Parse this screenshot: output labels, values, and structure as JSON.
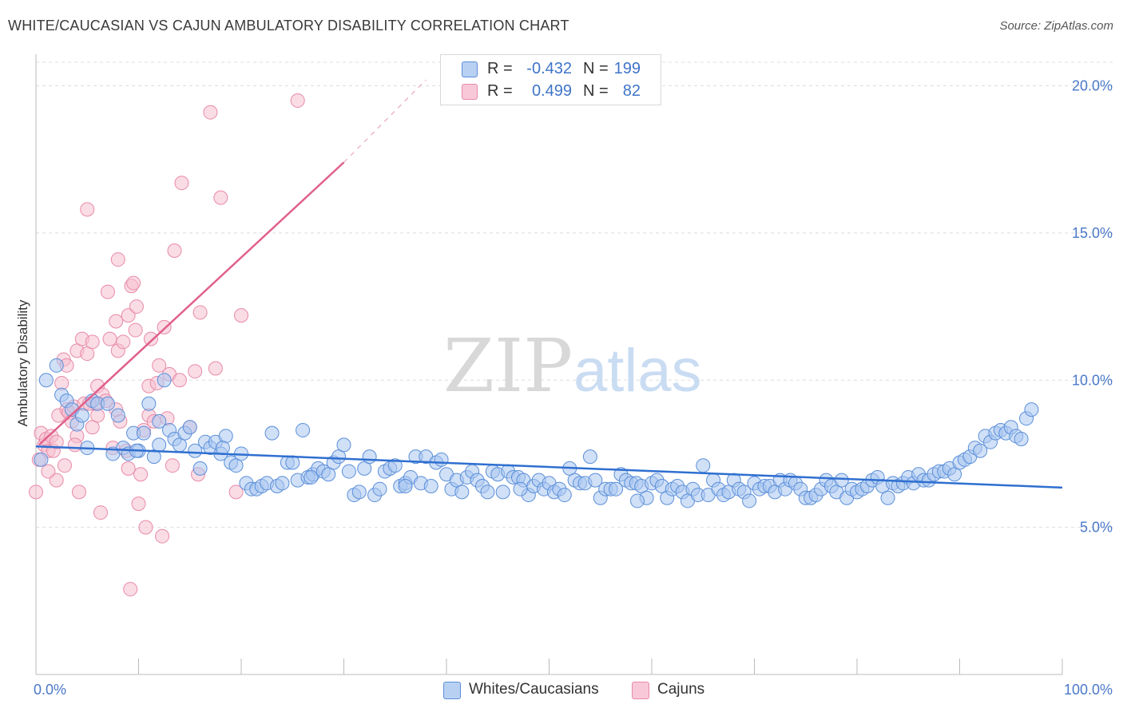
{
  "title": "WHITE/CAUCASIAN VS CAJUN AMBULATORY DISABILITY CORRELATION CHART",
  "source": "Source: ZipAtlas.com",
  "watermark": {
    "zip": "ZIP",
    "atlas": "atlas"
  },
  "legend": {
    "rows": [
      {
        "r_label": "R =",
        "r_value": "-0.432",
        "n_label": "N =",
        "n_value": "199"
      },
      {
        "r_label": "R =",
        "r_value": "0.499",
        "n_label": "N =",
        "n_value": "82"
      }
    ]
  },
  "bottom_legend": [
    "Whites/Caucasians",
    "Cajuns"
  ],
  "colors": {
    "blue_fill": "#a9c7f0",
    "blue_stroke": "#5b8fd9",
    "blue_line": "#2f6fd0",
    "pink_fill": "#f6bfd0",
    "pink_stroke": "#e88aa8",
    "pink_line": "#e0608c",
    "grid": "#dddddd",
    "axis_text": "#4a78c8"
  },
  "chart_data": {
    "type": "scatter",
    "title": "WHITE/CAUCASIAN VS CAJUN AMBULATORY DISABILITY CORRELATION CHART",
    "xlabel": "",
    "ylabel": "Ambulatory Disability",
    "xlim": [
      0,
      100
    ],
    "ylim": [
      0,
      20.8
    ],
    "x_tick_labels": [
      "0.0%",
      "100.0%"
    ],
    "y_ticks": [
      5,
      10,
      15,
      20
    ],
    "y_tick_labels": [
      "5.0%",
      "10.0%",
      "15.0%",
      "20.0%"
    ],
    "series": [
      {
        "name": "Whites/Caucasians",
        "R": -0.432,
        "N": 199,
        "trend": {
          "x0": 0,
          "y0": 7.75,
          "x1": 100,
          "y1": 6.35
        },
        "points": [
          [
            0.5,
            7.3
          ],
          [
            1,
            10
          ],
          [
            2,
            10.5
          ],
          [
            2.5,
            9.5
          ],
          [
            3,
            9.3
          ],
          [
            3.5,
            9
          ],
          [
            4,
            8.5
          ],
          [
            4.5,
            8.8
          ],
          [
            5,
            7.7
          ],
          [
            5.5,
            9.3
          ],
          [
            6,
            9.2
          ],
          [
            7,
            9.2
          ],
          [
            7.5,
            7.5
          ],
          [
            8,
            8.8
          ],
          [
            8.5,
            7.7
          ],
          [
            9,
            7.5
          ],
          [
            9.5,
            8.2
          ],
          [
            10,
            7.6
          ],
          [
            10.5,
            8.2
          ],
          [
            11,
            9.2
          ],
          [
            11.5,
            7.4
          ],
          [
            12,
            7.8
          ],
          [
            12.5,
            10
          ],
          [
            13,
            8.3
          ],
          [
            13.5,
            8
          ],
          [
            14,
            7.8
          ],
          [
            14.5,
            8.2
          ],
          [
            15,
            8.4
          ],
          [
            15.5,
            7.6
          ],
          [
            16,
            7
          ],
          [
            16.5,
            7.9
          ],
          [
            17,
            7.7
          ],
          [
            17.5,
            7.9
          ],
          [
            18,
            7.5
          ],
          [
            18.5,
            8.1
          ],
          [
            19,
            7.2
          ],
          [
            19.5,
            7.1
          ],
          [
            20,
            7.5
          ],
          [
            20.5,
            6.5
          ],
          [
            21,
            6.3
          ],
          [
            21.5,
            6.3
          ],
          [
            22,
            6.4
          ],
          [
            22.5,
            6.5
          ],
          [
            23,
            8.2
          ],
          [
            23.5,
            6.4
          ],
          [
            24,
            6.5
          ],
          [
            24.5,
            7.2
          ],
          [
            25,
            7.2
          ],
          [
            25.5,
            6.6
          ],
          [
            26,
            8.3
          ],
          [
            26.5,
            6.7
          ],
          [
            27,
            6.8
          ],
          [
            27.5,
            7
          ],
          [
            28,
            6.9
          ],
          [
            28.5,
            6.8
          ],
          [
            29,
            7.2
          ],
          [
            29.5,
            7.4
          ],
          [
            30,
            7.8
          ],
          [
            30.5,
            6.9
          ],
          [
            31,
            6.1
          ],
          [
            31.5,
            6.2
          ],
          [
            32,
            7
          ],
          [
            32.5,
            7.4
          ],
          [
            33,
            6.1
          ],
          [
            33.5,
            6.3
          ],
          [
            34,
            6.9
          ],
          [
            34.5,
            7
          ],
          [
            35,
            7.1
          ],
          [
            35.5,
            6.4
          ],
          [
            36,
            6.5
          ],
          [
            36.5,
            6.7
          ],
          [
            37,
            7.4
          ],
          [
            37.5,
            6.5
          ],
          [
            38,
            7.4
          ],
          [
            38.5,
            6.4
          ],
          [
            39,
            7.2
          ],
          [
            39.5,
            7.3
          ],
          [
            40,
            6.8
          ],
          [
            40.5,
            6.3
          ],
          [
            41,
            6.6
          ],
          [
            41.5,
            6.2
          ],
          [
            42,
            6.7
          ],
          [
            42.5,
            6.9
          ],
          [
            43,
            6.6
          ],
          [
            43.5,
            6.4
          ],
          [
            44,
            6.2
          ],
          [
            44.5,
            6.9
          ],
          [
            45,
            6.8
          ],
          [
            45.5,
            6.2
          ],
          [
            46,
            6.9
          ],
          [
            46.5,
            6.7
          ],
          [
            47,
            6.7
          ],
          [
            47.5,
            6.6
          ],
          [
            48,
            6.1
          ],
          [
            48.5,
            6.4
          ],
          [
            49,
            6.6
          ],
          [
            49.5,
            6.3
          ],
          [
            50,
            6.5
          ],
          [
            50.5,
            6.2
          ],
          [
            51,
            6.3
          ],
          [
            51.5,
            6.1
          ],
          [
            52,
            7
          ],
          [
            52.5,
            6.6
          ],
          [
            53,
            6.5
          ],
          [
            53.5,
            6.5
          ],
          [
            54,
            7.4
          ],
          [
            54.5,
            6.6
          ],
          [
            55,
            6
          ],
          [
            55.5,
            6.3
          ],
          [
            56,
            6.3
          ],
          [
            56.5,
            6.3
          ],
          [
            57,
            6.8
          ],
          [
            57.5,
            6.6
          ],
          [
            58,
            6.5
          ],
          [
            58.5,
            6.5
          ],
          [
            59,
            6.4
          ],
          [
            59.5,
            6
          ],
          [
            60,
            6.5
          ],
          [
            60.5,
            6.6
          ],
          [
            61,
            6.4
          ],
          [
            61.5,
            6
          ],
          [
            62,
            6.3
          ],
          [
            62.5,
            6.4
          ],
          [
            63,
            6.2
          ],
          [
            63.5,
            5.9
          ],
          [
            64,
            6.3
          ],
          [
            64.5,
            6.1
          ],
          [
            65,
            7.1
          ],
          [
            65.5,
            6.1
          ],
          [
            66,
            6.6
          ],
          [
            66.5,
            6.3
          ],
          [
            67,
            6.1
          ],
          [
            67.5,
            6.2
          ],
          [
            68,
            6.6
          ],
          [
            68.5,
            6.3
          ],
          [
            69,
            6.2
          ],
          [
            69.5,
            5.9
          ],
          [
            70,
            6.5
          ],
          [
            70.5,
            6.3
          ],
          [
            71,
            6.4
          ],
          [
            71.5,
            6.4
          ],
          [
            72,
            6.2
          ],
          [
            72.5,
            6.6
          ],
          [
            73,
            6.3
          ],
          [
            73.5,
            6.6
          ],
          [
            74,
            6.5
          ],
          [
            74.5,
            6.3
          ],
          [
            75,
            6
          ],
          [
            75.5,
            6
          ],
          [
            76,
            6.1
          ],
          [
            76.5,
            6.3
          ],
          [
            77,
            6.6
          ],
          [
            77.5,
            6.4
          ],
          [
            78,
            6.2
          ],
          [
            78.5,
            6.6
          ],
          [
            79,
            6
          ],
          [
            79.5,
            6.3
          ],
          [
            80,
            6.2
          ],
          [
            80.5,
            6.3
          ],
          [
            81,
            6.4
          ],
          [
            81.5,
            6.6
          ],
          [
            82,
            6.7
          ],
          [
            82.5,
            6.4
          ],
          [
            83,
            6
          ],
          [
            83.5,
            6.5
          ],
          [
            84,
            6.4
          ],
          [
            84.5,
            6.5
          ],
          [
            85,
            6.7
          ],
          [
            85.5,
            6.5
          ],
          [
            86,
            6.8
          ],
          [
            86.5,
            6.6
          ],
          [
            87,
            6.6
          ],
          [
            87.5,
            6.8
          ],
          [
            88,
            6.9
          ],
          [
            88.5,
            6.9
          ],
          [
            89,
            7
          ],
          [
            89.5,
            6.8
          ],
          [
            90,
            7.2
          ],
          [
            90.5,
            7.3
          ],
          [
            91,
            7.4
          ],
          [
            91.5,
            7.7
          ],
          [
            92,
            7.6
          ],
          [
            92.5,
            8.1
          ],
          [
            93,
            7.9
          ],
          [
            93.5,
            8.2
          ],
          [
            94,
            8.3
          ],
          [
            94.5,
            8.2
          ],
          [
            95,
            8.4
          ],
          [
            95.5,
            8.1
          ],
          [
            96,
            8
          ],
          [
            96.5,
            8.7
          ],
          [
            97,
            9
          ],
          [
            12,
            8.6
          ],
          [
            9.8,
            7.6
          ],
          [
            18.2,
            7.7
          ],
          [
            26.8,
            6.7
          ],
          [
            36,
            6.4
          ],
          [
            47.2,
            6.3
          ],
          [
            58.6,
            5.9
          ]
        ]
      },
      {
        "name": "Cajuns",
        "R": 0.499,
        "N": 82,
        "trend": {
          "x0": 0.3,
          "y0": 7.8,
          "x1": 30,
          "y1": 17.4,
          "dash_to_x": 38,
          "dash_to_y": 20.2
        },
        "points": [
          [
            0,
            6.2
          ],
          [
            0.3,
            7.3
          ],
          [
            0.5,
            8.2
          ],
          [
            0.8,
            7.8
          ],
          [
            1,
            8
          ],
          [
            1.2,
            7.6
          ],
          [
            1.5,
            8.1
          ],
          [
            1.7,
            7.6
          ],
          [
            2,
            7.9
          ],
          [
            2,
            6.6
          ],
          [
            2.2,
            8.8
          ],
          [
            2.5,
            9.9
          ],
          [
            2.7,
            10.7
          ],
          [
            2.8,
            7.1
          ],
          [
            3,
            10.5
          ],
          [
            3,
            9
          ],
          [
            3.2,
            8.9
          ],
          [
            3.5,
            8.6
          ],
          [
            3.7,
            9.1
          ],
          [
            4,
            11
          ],
          [
            4,
            8.1
          ],
          [
            4.2,
            6.2
          ],
          [
            4.5,
            11.4
          ],
          [
            4.7,
            9.2
          ],
          [
            5,
            10.9
          ],
          [
            5,
            15.8
          ],
          [
            5.5,
            11.3
          ],
          [
            5.5,
            8.4
          ],
          [
            5.8,
            9.2
          ],
          [
            6,
            9.8
          ],
          [
            6.3,
            5.5
          ],
          [
            6.5,
            9.5
          ],
          [
            6.8,
            9.3
          ],
          [
            7,
            13
          ],
          [
            7.2,
            11.4
          ],
          [
            7.5,
            7.7
          ],
          [
            7.8,
            12
          ],
          [
            8,
            11
          ],
          [
            8,
            14.1
          ],
          [
            8.2,
            8.6
          ],
          [
            8.5,
            11.3
          ],
          [
            8.8,
            7.6
          ],
          [
            9,
            12.2
          ],
          [
            9,
            7
          ],
          [
            9.3,
            13.2
          ],
          [
            9.5,
            13.3
          ],
          [
            9.7,
            11.7
          ],
          [
            9.8,
            12.5
          ],
          [
            10,
            5.8
          ],
          [
            10.2,
            6.8
          ],
          [
            10.5,
            8.3
          ],
          [
            10.7,
            5
          ],
          [
            11,
            8.8
          ],
          [
            11,
            9.8
          ],
          [
            11.2,
            11.4
          ],
          [
            11.5,
            8.6
          ],
          [
            11.8,
            9.9
          ],
          [
            12,
            10.5
          ],
          [
            12.3,
            4.7
          ],
          [
            12.5,
            11.8
          ],
          [
            12.8,
            8.7
          ],
          [
            13,
            10.2
          ],
          [
            13.3,
            7.1
          ],
          [
            13.5,
            14.4
          ],
          [
            14,
            10
          ],
          [
            14.2,
            16.7
          ],
          [
            15,
            8.4
          ],
          [
            15.5,
            10.3
          ],
          [
            15.8,
            6.8
          ],
          [
            16,
            12.3
          ],
          [
            17,
            19.1
          ],
          [
            17.5,
            10.4
          ],
          [
            18,
            16.2
          ],
          [
            19.5,
            6.2
          ],
          [
            20,
            12.2
          ],
          [
            25.5,
            19.5
          ],
          [
            9.2,
            2.9
          ],
          [
            6,
            8.8
          ],
          [
            3.8,
            7.8
          ],
          [
            1.2,
            6.9
          ],
          [
            7.8,
            9
          ],
          [
            5.2,
            9.2
          ]
        ]
      }
    ]
  }
}
